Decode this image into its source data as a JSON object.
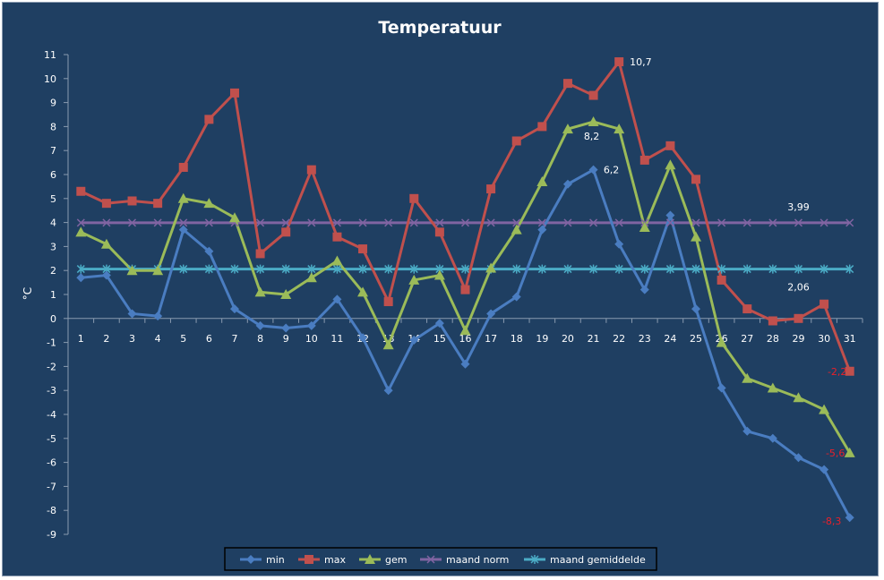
{
  "chart_data": {
    "type": "line",
    "title": "Temperatuur",
    "ylabel": "°C",
    "xlabel": "",
    "ylim": [
      -9,
      11
    ],
    "yticks": [
      11,
      10,
      9,
      8,
      7,
      6,
      5,
      4,
      3,
      2,
      1,
      0,
      -1,
      -2,
      -3,
      -4,
      -5,
      -6,
      -7,
      -8,
      -9
    ],
    "categories": [
      "1",
      "2",
      "3",
      "4",
      "5",
      "6",
      "7",
      "8",
      "9",
      "10",
      "11",
      "12",
      "13",
      "14",
      "15",
      "16",
      "17",
      "18",
      "19",
      "20",
      "21",
      "22",
      "23",
      "24",
      "25",
      "26",
      "27",
      "28",
      "29",
      "30",
      "31"
    ],
    "grid": false,
    "legend_position": "bottom",
    "series": [
      {
        "name": "min",
        "color": "#4a7dc1",
        "marker": "diamond",
        "values": [
          1.7,
          1.8,
          0.2,
          0.1,
          3.7,
          2.8,
          0.4,
          -0.3,
          -0.4,
          -0.3,
          0.8,
          -0.8,
          -3.0,
          -0.9,
          -0.2,
          -1.9,
          0.2,
          0.9,
          3.7,
          5.6,
          6.2,
          3.1,
          1.2,
          4.3,
          0.4,
          -2.9,
          -4.7,
          -5.0,
          -5.8,
          -6.3,
          -8.3
        ]
      },
      {
        "name": "max",
        "color": "#c0504d",
        "marker": "square",
        "values": [
          5.3,
          4.8,
          4.9,
          4.8,
          6.3,
          8.3,
          9.4,
          2.7,
          3.6,
          6.2,
          3.4,
          2.9,
          0.7,
          5.0,
          3.6,
          1.2,
          5.4,
          7.4,
          8.0,
          9.8,
          9.3,
          10.7,
          6.6,
          7.2,
          5.8,
          1.6,
          0.4,
          -0.1,
          0.0,
          0.6,
          -2.2
        ]
      },
      {
        "name": "gem",
        "color": "#9bbb59",
        "marker": "triangle",
        "values": [
          3.6,
          3.1,
          2.0,
          2.0,
          5.0,
          4.8,
          4.2,
          1.1,
          1.0,
          1.7,
          2.4,
          1.1,
          -1.1,
          1.6,
          1.8,
          -0.5,
          2.1,
          3.7,
          5.7,
          7.9,
          8.2,
          7.9,
          3.8,
          6.4,
          3.4,
          -1.0,
          -2.5,
          -2.9,
          -3.3,
          -3.8,
          -5.6
        ]
      },
      {
        "name": "maand norm",
        "color": "#8064a2",
        "marker": "x",
        "values": [
          3.99,
          3.99,
          3.99,
          3.99,
          3.99,
          3.99,
          3.99,
          3.99,
          3.99,
          3.99,
          3.99,
          3.99,
          3.99,
          3.99,
          3.99,
          3.99,
          3.99,
          3.99,
          3.99,
          3.99,
          3.99,
          3.99,
          3.99,
          3.99,
          3.99,
          3.99,
          3.99,
          3.99,
          3.99,
          3.99,
          3.99
        ]
      },
      {
        "name": "maand gemiddelde",
        "color": "#4bacc6",
        "marker": "star",
        "values": [
          2.06,
          2.06,
          2.06,
          2.06,
          2.06,
          2.06,
          2.06,
          2.06,
          2.06,
          2.06,
          2.06,
          2.06,
          2.06,
          2.06,
          2.06,
          2.06,
          2.06,
          2.06,
          2.06,
          2.06,
          2.06,
          2.06,
          2.06,
          2.06,
          2.06,
          2.06,
          2.06,
          2.06,
          2.06,
          2.06,
          2.06
        ]
      }
    ],
    "annotations": [
      {
        "text": "10,7",
        "series": "max",
        "x": "22",
        "color": "#ffffff"
      },
      {
        "text": "8,2",
        "series": "gem",
        "x": "21",
        "color": "#ffffff"
      },
      {
        "text": "6,2",
        "series": "min",
        "x": "21",
        "color": "#ffffff"
      },
      {
        "text": "3,99",
        "series": "maand norm",
        "x": "29",
        "color": "#ffffff"
      },
      {
        "text": "2,06",
        "series": "maand gemiddelde",
        "x": "29",
        "color": "#ffffff"
      },
      {
        "text": "-2,2",
        "series": "max",
        "x": "31",
        "color": "#e8202a"
      },
      {
        "text": "-5,6",
        "series": "gem",
        "x": "31",
        "color": "#e8202a"
      },
      {
        "text": "-8,3",
        "series": "min",
        "x": "31",
        "color": "#e8202a"
      }
    ]
  }
}
